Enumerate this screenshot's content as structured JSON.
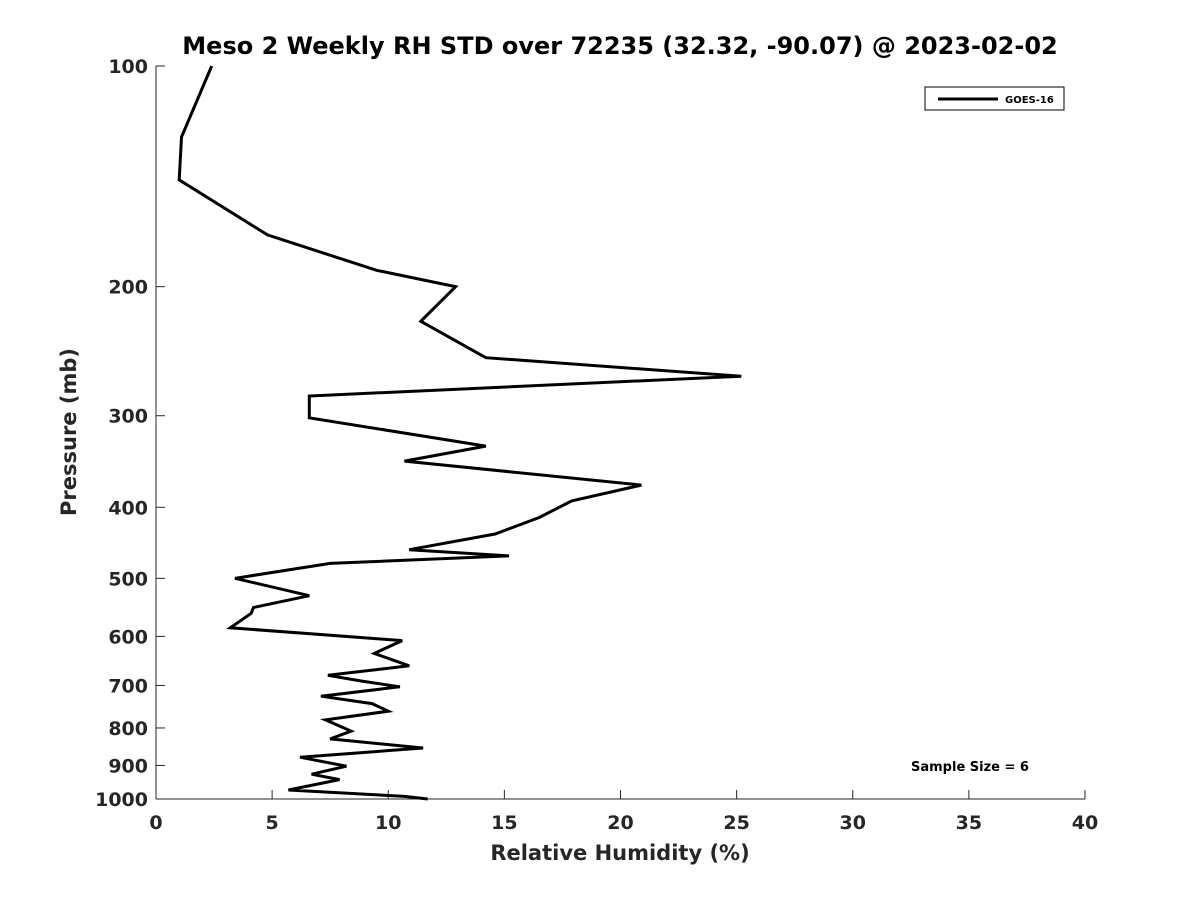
{
  "chart_data": {
    "type": "line",
    "title": "Meso 2 Weekly RH STD over 72235 (32.32, -90.07) @ 2023-02-02",
    "xlabel": "Relative Humidity (%)",
    "ylabel": "Pressure (mb)",
    "xlim": [
      0,
      40
    ],
    "ylim": [
      100,
      1000
    ],
    "yscale": "log",
    "y_reversed": true,
    "x_ticks": [
      0,
      5,
      10,
      15,
      20,
      25,
      30,
      35,
      40
    ],
    "x_tick_labels": [
      "0",
      "5",
      "10",
      "15",
      "20",
      "25",
      "30",
      "35",
      "40"
    ],
    "y_ticks": [
      100,
      200,
      300,
      400,
      500,
      600,
      700,
      800,
      900,
      1000
    ],
    "y_tick_labels": [
      "100",
      "200",
      "300",
      "400",
      "500",
      "600",
      "700",
      "800",
      "900",
      "1000"
    ],
    "grid": false,
    "legend_position": "top-right",
    "series": [
      {
        "name": "GOES-16",
        "color": "#000000",
        "x": [
          2.4,
          1.1,
          1.0,
          4.8,
          9.5,
          12.9,
          11.4,
          14.2,
          25.2,
          6.6,
          6.6,
          14.2,
          10.7,
          20.9,
          17.9,
          16.5,
          14.6,
          10.9,
          15.2,
          7.5,
          3.4,
          6.6,
          4.2,
          4.1,
          3.2,
          10.6,
          9.4,
          10.9,
          7.4,
          8.8,
          10.5,
          7.1,
          9.3,
          10.0,
          7.3,
          8.4,
          7.5,
          11.5,
          6.2,
          8.2,
          6.7,
          7.9,
          5.7,
          10.7,
          11.7
        ],
        "y": [
          100,
          125,
          143,
          170,
          190,
          200,
          223,
          250,
          265,
          282,
          302,
          330,
          346,
          373,
          392,
          413,
          435,
          457,
          466,
          477,
          500,
          528,
          548,
          558,
          584,
          608,
          633,
          658,
          678,
          690,
          703,
          724,
          741,
          759,
          780,
          808,
          828,
          852,
          877,
          902,
          925,
          941,
          972,
          992,
          1000
        ]
      }
    ],
    "annotation": "Sample Size = 6"
  }
}
